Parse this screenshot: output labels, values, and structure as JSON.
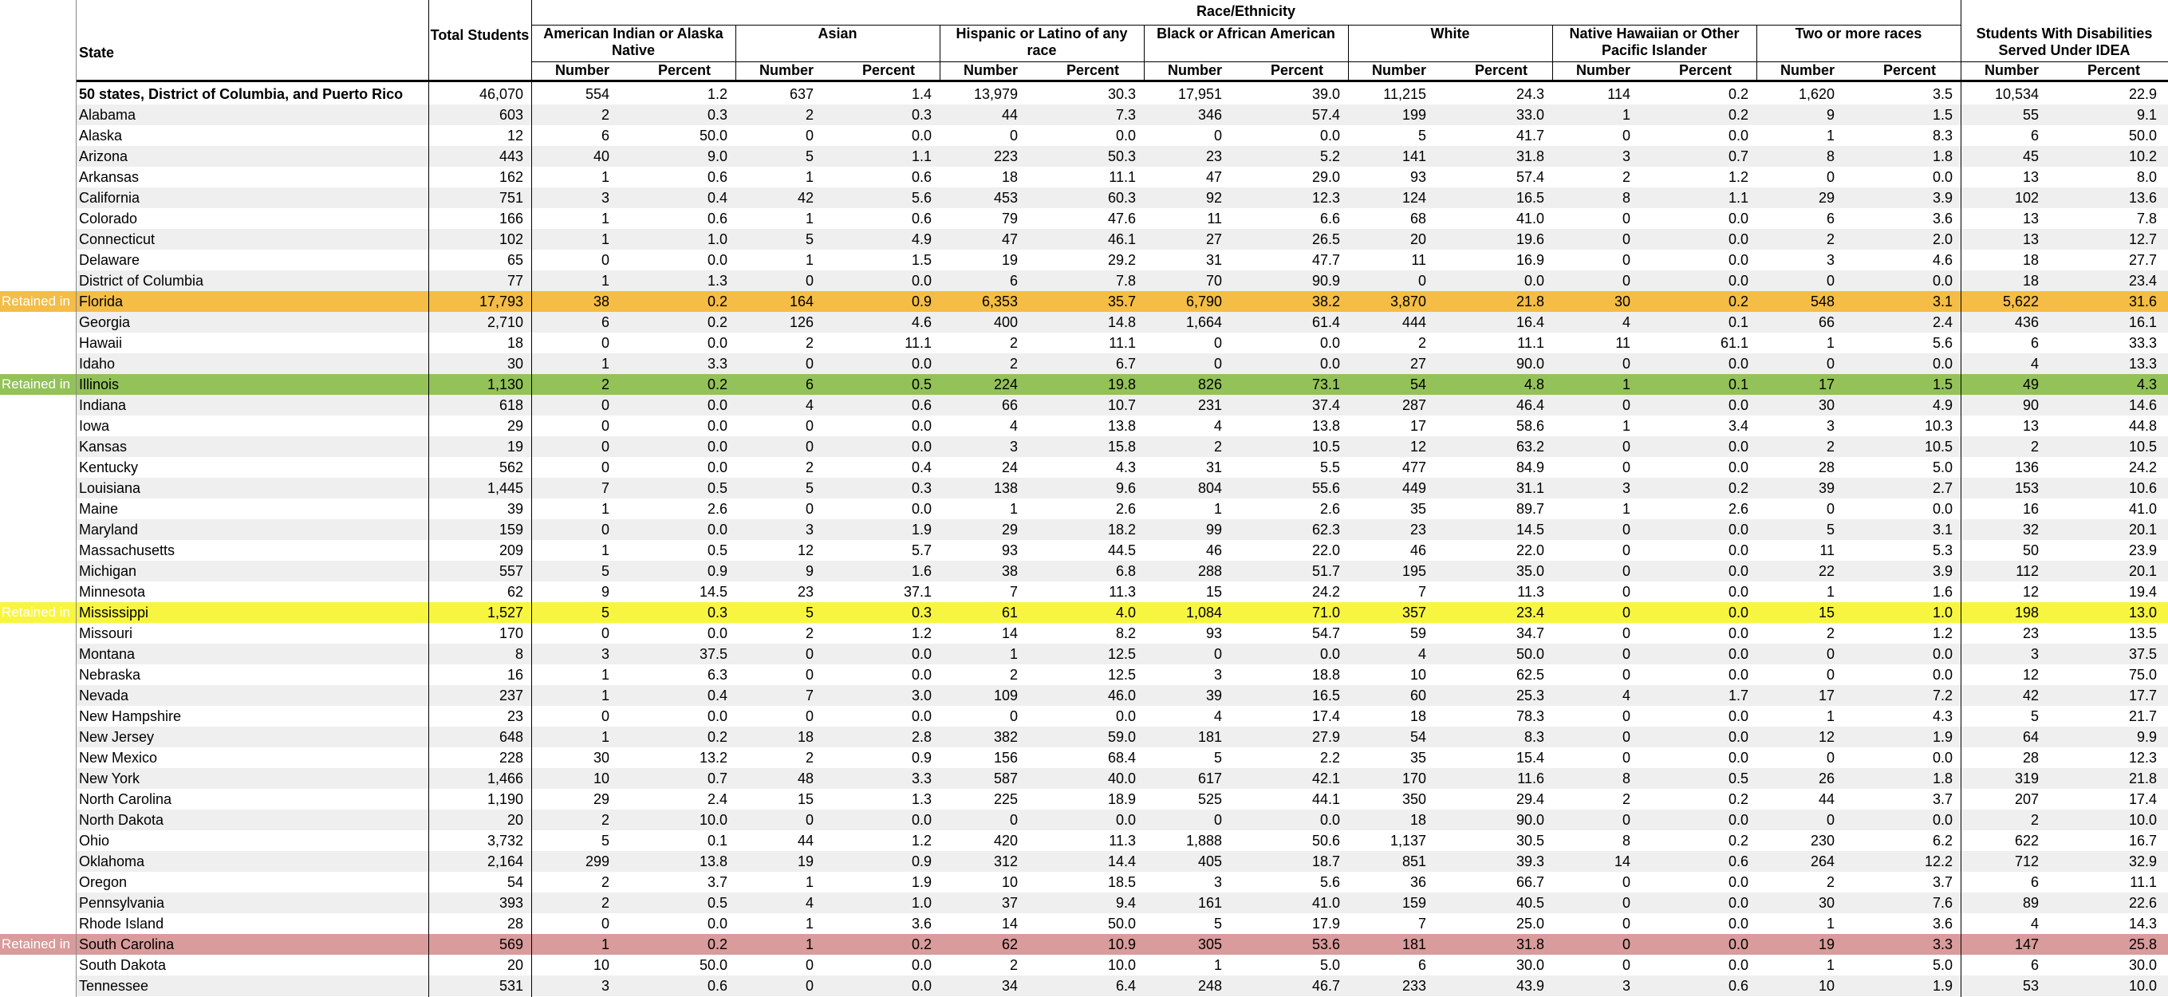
{
  "header": {
    "race_ethnicity": "Race/Ethnicity",
    "state": "State",
    "total_students": "Total Students",
    "groups": [
      "American Indian or Alaska Native",
      "Asian",
      "Hispanic or Latino of any race",
      "Black or African American",
      "White",
      "Native Hawaiian or Other Pacific Islander",
      "Two or more races"
    ],
    "idea": "Students With Disabilities Served Under IDEA",
    "number": "Number",
    "percent": "Percent"
  },
  "table": {
    "rows": [
      {
        "state": "50 states, District of Columbia, and Puerto Rico",
        "bold": true,
        "cells": [
          "46,070",
          "554",
          "1.2",
          "637",
          "1.4",
          "13,979",
          "30.3",
          "17,951",
          "39.0",
          "11,215",
          "24.3",
          "114",
          "0.2",
          "1,620",
          "3.5",
          "10,534",
          "22.9"
        ]
      },
      {
        "state": "Alabama",
        "cells": [
          "603",
          "2",
          "0.3",
          "2",
          "0.3",
          "44",
          "7.3",
          "346",
          "57.4",
          "199",
          "33.0",
          "1",
          "0.2",
          "9",
          "1.5",
          "55",
          "9.1"
        ]
      },
      {
        "state": "Alaska",
        "cells": [
          "12",
          "6",
          "50.0",
          "0",
          "0.0",
          "0",
          "0.0",
          "0",
          "0.0",
          "5",
          "41.7",
          "0",
          "0.0",
          "1",
          "8.3",
          "6",
          "50.0"
        ]
      },
      {
        "state": "Arizona",
        "cells": [
          "443",
          "40",
          "9.0",
          "5",
          "1.1",
          "223",
          "50.3",
          "23",
          "5.2",
          "141",
          "31.8",
          "3",
          "0.7",
          "8",
          "1.8",
          "45",
          "10.2"
        ]
      },
      {
        "state": "Arkansas",
        "cells": [
          "162",
          "1",
          "0.6",
          "1",
          "0.6",
          "18",
          "11.1",
          "47",
          "29.0",
          "93",
          "57.4",
          "2",
          "1.2",
          "0",
          "0.0",
          "13",
          "8.0"
        ]
      },
      {
        "state": "California",
        "cells": [
          "751",
          "3",
          "0.4",
          "42",
          "5.6",
          "453",
          "60.3",
          "92",
          "12.3",
          "124",
          "16.5",
          "8",
          "1.1",
          "29",
          "3.9",
          "102",
          "13.6"
        ]
      },
      {
        "state": "Colorado",
        "cells": [
          "166",
          "1",
          "0.6",
          "1",
          "0.6",
          "79",
          "47.6",
          "11",
          "6.6",
          "68",
          "41.0",
          "0",
          "0.0",
          "6",
          "3.6",
          "13",
          "7.8"
        ]
      },
      {
        "state": "Connecticut",
        "cells": [
          "102",
          "1",
          "1.0",
          "5",
          "4.9",
          "47",
          "46.1",
          "27",
          "26.5",
          "20",
          "19.6",
          "0",
          "0.0",
          "2",
          "2.0",
          "13",
          "12.7"
        ]
      },
      {
        "state": "Delaware",
        "cells": [
          "65",
          "0",
          "0.0",
          "1",
          "1.5",
          "19",
          "29.2",
          "31",
          "47.7",
          "11",
          "16.9",
          "0",
          "0.0",
          "3",
          "4.6",
          "18",
          "27.7"
        ]
      },
      {
        "state": "District of Columbia",
        "cells": [
          "77",
          "1",
          "1.3",
          "0",
          "0.0",
          "6",
          "7.8",
          "70",
          "90.9",
          "0",
          "0.0",
          "0",
          "0.0",
          "0",
          "0.0",
          "18",
          "23.4"
        ]
      },
      {
        "state": "Florida",
        "retained": "Retained in",
        "highlight": "#f5bd45",
        "cells": [
          "17,793",
          "38",
          "0.2",
          "164",
          "0.9",
          "6,353",
          "35.7",
          "6,790",
          "38.2",
          "3,870",
          "21.8",
          "30",
          "0.2",
          "548",
          "3.1",
          "5,622",
          "31.6"
        ]
      },
      {
        "state": "Georgia",
        "cells": [
          "2,710",
          "6",
          "0.2",
          "126",
          "4.6",
          "400",
          "14.8",
          "1,664",
          "61.4",
          "444",
          "16.4",
          "4",
          "0.1",
          "66",
          "2.4",
          "436",
          "16.1"
        ]
      },
      {
        "state": "Hawaii",
        "cells": [
          "18",
          "0",
          "0.0",
          "2",
          "11.1",
          "2",
          "11.1",
          "0",
          "0.0",
          "2",
          "11.1",
          "11",
          "61.1",
          "1",
          "5.6",
          "6",
          "33.3"
        ]
      },
      {
        "state": "Idaho",
        "cells": [
          "30",
          "1",
          "3.3",
          "0",
          "0.0",
          "2",
          "6.7",
          "0",
          "0.0",
          "27",
          "90.0",
          "0",
          "0.0",
          "0",
          "0.0",
          "4",
          "13.3"
        ]
      },
      {
        "state": "Illinois",
        "retained": "Retained in",
        "highlight": "#93c258",
        "cells": [
          "1,130",
          "2",
          "0.2",
          "6",
          "0.5",
          "224",
          "19.8",
          "826",
          "73.1",
          "54",
          "4.8",
          "1",
          "0.1",
          "17",
          "1.5",
          "49",
          "4.3"
        ]
      },
      {
        "state": "Indiana",
        "cells": [
          "618",
          "0",
          "0.0",
          "4",
          "0.6",
          "66",
          "10.7",
          "231",
          "37.4",
          "287",
          "46.4",
          "0",
          "0.0",
          "30",
          "4.9",
          "90",
          "14.6"
        ]
      },
      {
        "state": "Iowa",
        "cells": [
          "29",
          "0",
          "0.0",
          "0",
          "0.0",
          "4",
          "13.8",
          "4",
          "13.8",
          "17",
          "58.6",
          "1",
          "3.4",
          "3",
          "10.3",
          "13",
          "44.8"
        ]
      },
      {
        "state": "Kansas",
        "cells": [
          "19",
          "0",
          "0.0",
          "0",
          "0.0",
          "3",
          "15.8",
          "2",
          "10.5",
          "12",
          "63.2",
          "0",
          "0.0",
          "2",
          "10.5",
          "2",
          "10.5"
        ]
      },
      {
        "state": "Kentucky",
        "cells": [
          "562",
          "0",
          "0.0",
          "2",
          "0.4",
          "24",
          "4.3",
          "31",
          "5.5",
          "477",
          "84.9",
          "0",
          "0.0",
          "28",
          "5.0",
          "136",
          "24.2"
        ]
      },
      {
        "state": "Louisiana",
        "cells": [
          "1,445",
          "7",
          "0.5",
          "5",
          "0.3",
          "138",
          "9.6",
          "804",
          "55.6",
          "449",
          "31.1",
          "3",
          "0.2",
          "39",
          "2.7",
          "153",
          "10.6"
        ]
      },
      {
        "state": "Maine",
        "cells": [
          "39",
          "1",
          "2.6",
          "0",
          "0.0",
          "1",
          "2.6",
          "1",
          "2.6",
          "35",
          "89.7",
          "1",
          "2.6",
          "0",
          "0.0",
          "16",
          "41.0"
        ]
      },
      {
        "state": "Maryland",
        "cells": [
          "159",
          "0",
          "0.0",
          "3",
          "1.9",
          "29",
          "18.2",
          "99",
          "62.3",
          "23",
          "14.5",
          "0",
          "0.0",
          "5",
          "3.1",
          "32",
          "20.1"
        ]
      },
      {
        "state": "Massachusetts",
        "cells": [
          "209",
          "1",
          "0.5",
          "12",
          "5.7",
          "93",
          "44.5",
          "46",
          "22.0",
          "46",
          "22.0",
          "0",
          "0.0",
          "11",
          "5.3",
          "50",
          "23.9"
        ]
      },
      {
        "state": "Michigan",
        "cells": [
          "557",
          "5",
          "0.9",
          "9",
          "1.6",
          "38",
          "6.8",
          "288",
          "51.7",
          "195",
          "35.0",
          "0",
          "0.0",
          "22",
          "3.9",
          "112",
          "20.1"
        ]
      },
      {
        "state": "Minnesota",
        "cells": [
          "62",
          "9",
          "14.5",
          "23",
          "37.1",
          "7",
          "11.3",
          "15",
          "24.2",
          "7",
          "11.3",
          "0",
          "0.0",
          "1",
          "1.6",
          "12",
          "19.4"
        ]
      },
      {
        "state": "Mississippi",
        "retained": "Retained in",
        "highlight": "#f8f540",
        "cells": [
          "1,527",
          "5",
          "0.3",
          "5",
          "0.3",
          "61",
          "4.0",
          "1,084",
          "71.0",
          "357",
          "23.4",
          "0",
          "0.0",
          "15",
          "1.0",
          "198",
          "13.0"
        ]
      },
      {
        "state": "Missouri",
        "cells": [
          "170",
          "0",
          "0.0",
          "2",
          "1.2",
          "14",
          "8.2",
          "93",
          "54.7",
          "59",
          "34.7",
          "0",
          "0.0",
          "2",
          "1.2",
          "23",
          "13.5"
        ]
      },
      {
        "state": "Montana",
        "cells": [
          "8",
          "3",
          "37.5",
          "0",
          "0.0",
          "1",
          "12.5",
          "0",
          "0.0",
          "4",
          "50.0",
          "0",
          "0.0",
          "0",
          "0.0",
          "3",
          "37.5"
        ]
      },
      {
        "state": "Nebraska",
        "cells": [
          "16",
          "1",
          "6.3",
          "0",
          "0.0",
          "2",
          "12.5",
          "3",
          "18.8",
          "10",
          "62.5",
          "0",
          "0.0",
          "0",
          "0.0",
          "12",
          "75.0"
        ]
      },
      {
        "state": "Nevada",
        "cells": [
          "237",
          "1",
          "0.4",
          "7",
          "3.0",
          "109",
          "46.0",
          "39",
          "16.5",
          "60",
          "25.3",
          "4",
          "1.7",
          "17",
          "7.2",
          "42",
          "17.7"
        ]
      },
      {
        "state": "New Hampshire",
        "cells": [
          "23",
          "0",
          "0.0",
          "0",
          "0.0",
          "0",
          "0.0",
          "4",
          "17.4",
          "18",
          "78.3",
          "0",
          "0.0",
          "1",
          "4.3",
          "5",
          "21.7"
        ]
      },
      {
        "state": "New Jersey",
        "cells": [
          "648",
          "1",
          "0.2",
          "18",
          "2.8",
          "382",
          "59.0",
          "181",
          "27.9",
          "54",
          "8.3",
          "0",
          "0.0",
          "12",
          "1.9",
          "64",
          "9.9"
        ]
      },
      {
        "state": "New Mexico",
        "cells": [
          "228",
          "30",
          "13.2",
          "2",
          "0.9",
          "156",
          "68.4",
          "5",
          "2.2",
          "35",
          "15.4",
          "0",
          "0.0",
          "0",
          "0.0",
          "28",
          "12.3"
        ]
      },
      {
        "state": "New York",
        "cells": [
          "1,466",
          "10",
          "0.7",
          "48",
          "3.3",
          "587",
          "40.0",
          "617",
          "42.1",
          "170",
          "11.6",
          "8",
          "0.5",
          "26",
          "1.8",
          "319",
          "21.8"
        ]
      },
      {
        "state": "North Carolina",
        "cells": [
          "1,190",
          "29",
          "2.4",
          "15",
          "1.3",
          "225",
          "18.9",
          "525",
          "44.1",
          "350",
          "29.4",
          "2",
          "0.2",
          "44",
          "3.7",
          "207",
          "17.4"
        ]
      },
      {
        "state": "North Dakota",
        "cells": [
          "20",
          "2",
          "10.0",
          "0",
          "0.0",
          "0",
          "0.0",
          "0",
          "0.0",
          "18",
          "90.0",
          "0",
          "0.0",
          "0",
          "0.0",
          "2",
          "10.0"
        ]
      },
      {
        "state": "Ohio",
        "cells": [
          "3,732",
          "5",
          "0.1",
          "44",
          "1.2",
          "420",
          "11.3",
          "1,888",
          "50.6",
          "1,137",
          "30.5",
          "8",
          "0.2",
          "230",
          "6.2",
          "622",
          "16.7"
        ]
      },
      {
        "state": "Oklahoma",
        "cells": [
          "2,164",
          "299",
          "13.8",
          "19",
          "0.9",
          "312",
          "14.4",
          "405",
          "18.7",
          "851",
          "39.3",
          "14",
          "0.6",
          "264",
          "12.2",
          "712",
          "32.9"
        ]
      },
      {
        "state": "Oregon",
        "cells": [
          "54",
          "2",
          "3.7",
          "1",
          "1.9",
          "10",
          "18.5",
          "3",
          "5.6",
          "36",
          "66.7",
          "0",
          "0.0",
          "2",
          "3.7",
          "6",
          "11.1"
        ]
      },
      {
        "state": "Pennsylvania",
        "cells": [
          "393",
          "2",
          "0.5",
          "4",
          "1.0",
          "37",
          "9.4",
          "161",
          "41.0",
          "159",
          "40.5",
          "0",
          "0.0",
          "30",
          "7.6",
          "89",
          "22.6"
        ]
      },
      {
        "state": "Rhode Island",
        "cells": [
          "28",
          "0",
          "0.0",
          "1",
          "3.6",
          "14",
          "50.0",
          "5",
          "17.9",
          "7",
          "25.0",
          "0",
          "0.0",
          "1",
          "3.6",
          "4",
          "14.3"
        ]
      },
      {
        "state": "South Carolina",
        "retained": "Retained in",
        "highlight": "#d99b9b",
        "cells": [
          "569",
          "1",
          "0.2",
          "1",
          "0.2",
          "62",
          "10.9",
          "305",
          "53.6",
          "181",
          "31.8",
          "0",
          "0.0",
          "19",
          "3.3",
          "147",
          "25.8"
        ]
      },
      {
        "state": "South Dakota",
        "cells": [
          "20",
          "10",
          "50.0",
          "0",
          "0.0",
          "2",
          "10.0",
          "1",
          "5.0",
          "6",
          "30.0",
          "0",
          "0.0",
          "1",
          "5.0",
          "6",
          "30.0"
        ]
      },
      {
        "state": "Tennessee",
        "cells": [
          "531",
          "3",
          "0.6",
          "0",
          "0.0",
          "34",
          "6.4",
          "248",
          "46.7",
          "233",
          "43.9",
          "3",
          "0.6",
          "10",
          "1.9",
          "53",
          "10.0"
        ]
      }
    ]
  }
}
